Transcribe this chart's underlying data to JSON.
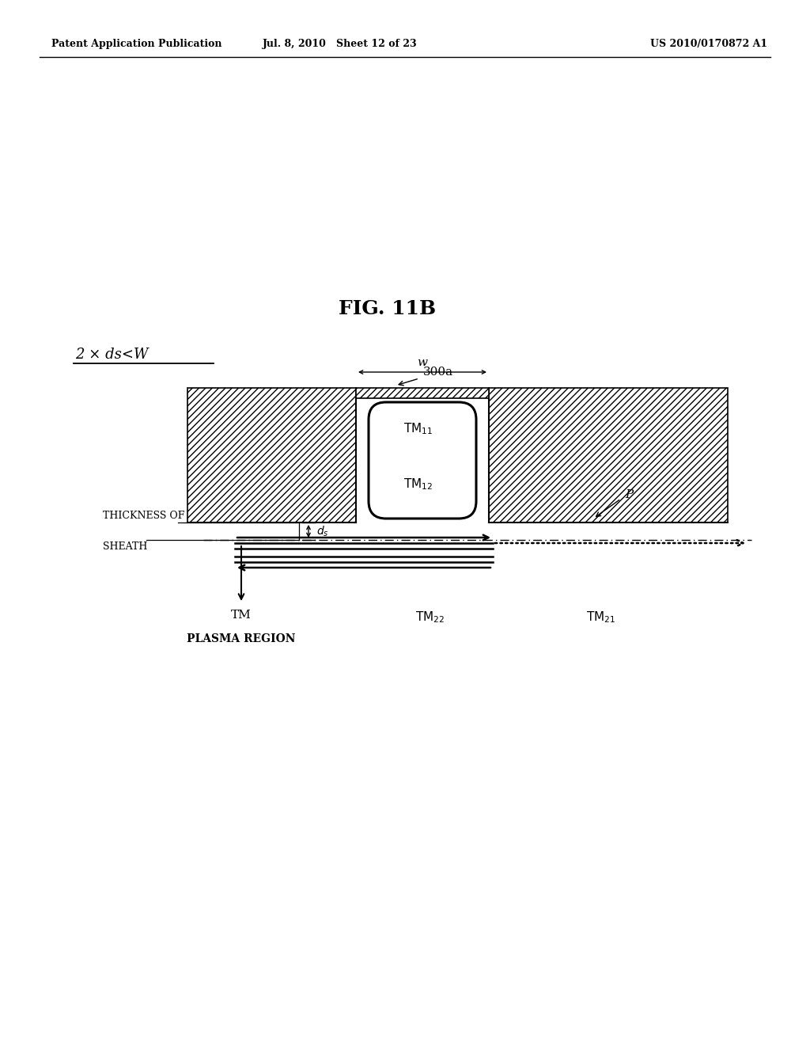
{
  "fig_title": "FIG. 11B",
  "patent_header_left": "Patent Application Publication",
  "patent_header_mid": "Jul. 8, 2010   Sheet 12 of 23",
  "patent_header_right": "US 2010/0170872 A1",
  "condition_label": "2 × ds<W",
  "label_300a": "300a",
  "label_W": "w",
  "label_TM": "TM",
  "label_TM22_sub": "22",
  "label_TM21_sub": "21",
  "label_P": "P",
  "label_thickness": "THICKNESS OF",
  "label_sheath": "SHEATH",
  "label_plasma": "PLASMA REGION",
  "bg_color": "#ffffff",
  "line_color": "#000000"
}
